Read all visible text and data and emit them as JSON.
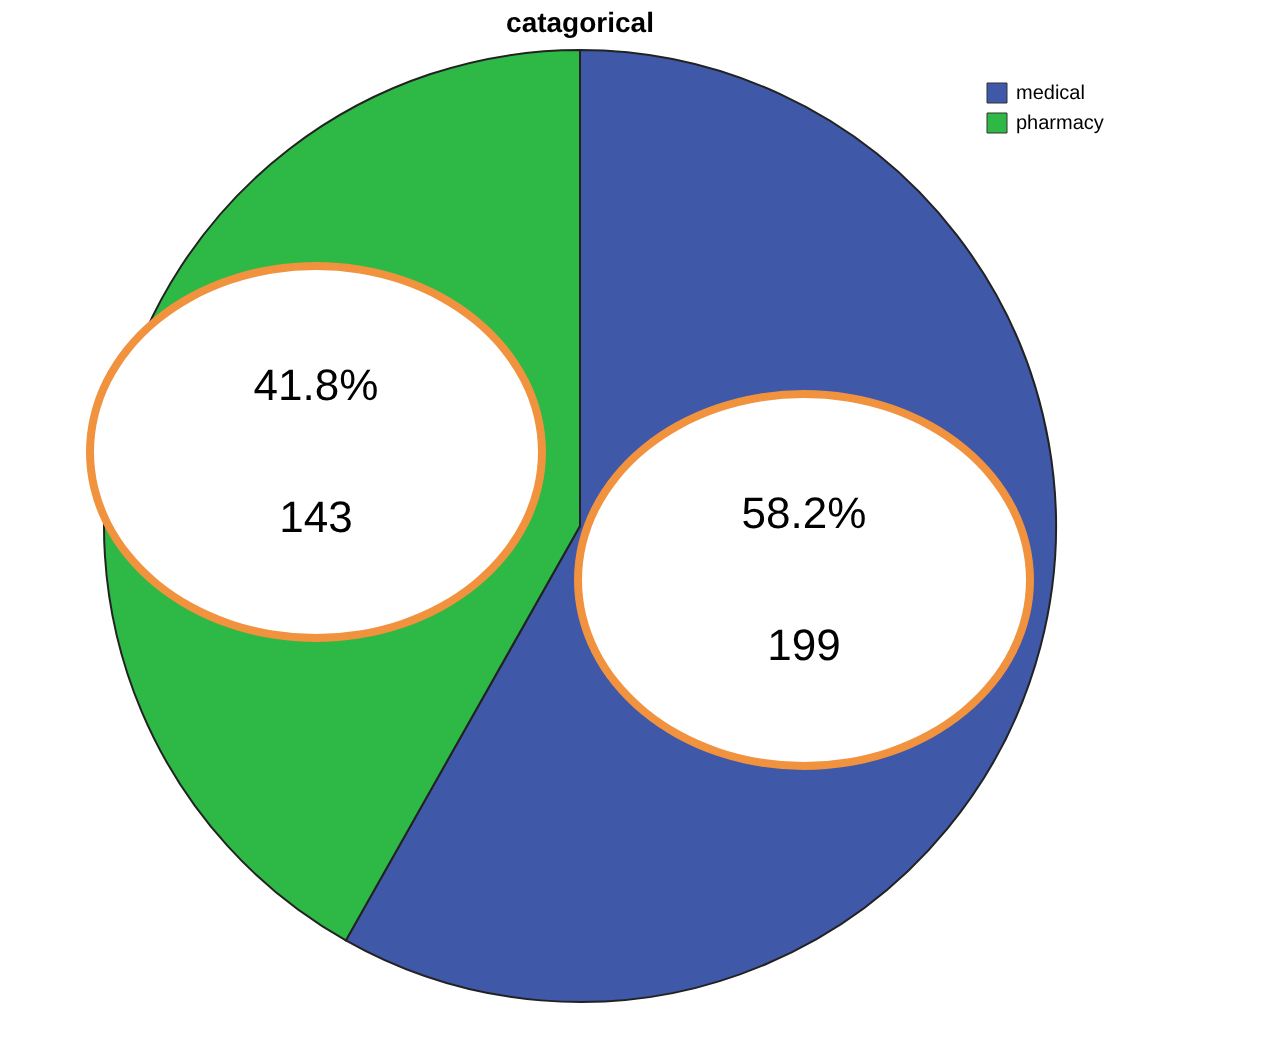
{
  "chart_data": {
    "type": "pie",
    "title": "catagorical",
    "categories": [
      "medical",
      "pharmacy"
    ],
    "values": [
      199,
      143
    ],
    "colors": [
      "#3f58a8",
      "#2eb845"
    ],
    "data_labels": true,
    "annotations": [
      "58.2%",
      "41.8%"
    ],
    "legend": "top right"
  }
}
